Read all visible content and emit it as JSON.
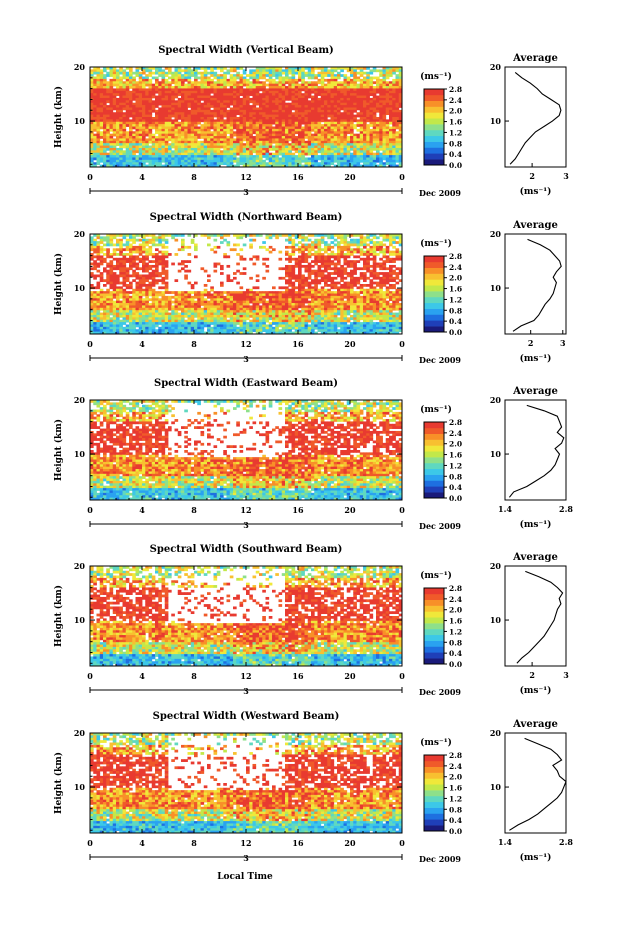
{
  "figure": {
    "xlabel": "Local Time",
    "date_label": "Dec 2009",
    "day_label": "3",
    "ylabel": "Height (km)",
    "colorbar_unit": "(ms⁻¹)",
    "colorbar_ticks": [
      "0.0",
      "0.4",
      "0.8",
      "1.2",
      "1.6",
      "2.0",
      "2.4",
      "2.8"
    ],
    "x_ticks": [
      "0",
      "4",
      "8",
      "12",
      "16",
      "20",
      "0"
    ],
    "y_ticks": [
      "10",
      "20"
    ],
    "avg_title": "Average",
    "avg_unit": "(ms⁻¹)"
  },
  "chart_data": [
    {
      "type": "heatmap",
      "title": "Spectral Width (Vertical Beam)",
      "xlabel": "Local Time",
      "ylabel": "Height (km)",
      "x_range_hours": [
        0,
        24
      ],
      "ylim_km": [
        1.5,
        20
      ],
      "colorbar_range": [
        0.0,
        2.8
      ],
      "profile": {
        "title": "Average",
        "xticks": [
          "2",
          "3"
        ],
        "xlim": [
          1.2,
          3.0
        ],
        "height_km": [
          2,
          3,
          4,
          5,
          6,
          7,
          8,
          9,
          10,
          11,
          12,
          13,
          14,
          15,
          16,
          17,
          18,
          19
        ],
        "values": [
          1.35,
          1.5,
          1.6,
          1.7,
          1.8,
          1.95,
          2.1,
          2.35,
          2.6,
          2.8,
          2.85,
          2.8,
          2.55,
          2.3,
          2.15,
          1.95,
          1.7,
          1.5
        ]
      }
    },
    {
      "type": "heatmap",
      "title": "Spectral Width (Northward Beam)",
      "xlabel": "Local Time",
      "ylabel": "Height (km)",
      "x_range_hours": [
        0,
        24
      ],
      "ylim_km": [
        1.5,
        20
      ],
      "colorbar_range": [
        0.0,
        2.8
      ],
      "profile": {
        "title": "Average",
        "xticks": [
          "2",
          "3"
        ],
        "xlim": [
          1.2,
          3.1
        ],
        "height_km": [
          2,
          3,
          4,
          5,
          6,
          7,
          8,
          9,
          10,
          11,
          12,
          13,
          14,
          15,
          16,
          17,
          18,
          19
        ],
        "values": [
          1.45,
          1.7,
          2.1,
          2.25,
          2.35,
          2.45,
          2.6,
          2.7,
          2.75,
          2.8,
          2.7,
          2.8,
          2.95,
          2.9,
          2.75,
          2.6,
          2.3,
          1.9
        ]
      }
    },
    {
      "type": "heatmap",
      "title": "Spectral Width (Eastward Beam)",
      "xlabel": "Local Time",
      "ylabel": "Height (km)",
      "x_range_hours": [
        0,
        24
      ],
      "ylim_km": [
        1.5,
        20
      ],
      "colorbar_range": [
        0.0,
        2.8
      ],
      "profile": {
        "title": "Average",
        "xticks": [
          "1.4",
          "2.8"
        ],
        "xlim": [
          1.4,
          2.8
        ],
        "height_km": [
          2,
          3,
          4,
          5,
          6,
          7,
          8,
          9,
          10,
          11,
          12,
          13,
          14,
          15,
          16,
          17,
          18,
          19
        ],
        "values": [
          1.5,
          1.6,
          1.9,
          2.1,
          2.3,
          2.45,
          2.55,
          2.6,
          2.65,
          2.55,
          2.7,
          2.75,
          2.6,
          2.7,
          2.65,
          2.6,
          2.3,
          1.9
        ]
      }
    },
    {
      "type": "heatmap",
      "title": "Spectral Width (Southward Beam)",
      "xlabel": "Local Time",
      "ylabel": "Height (km)",
      "x_range_hours": [
        0,
        24
      ],
      "ylim_km": [
        1.5,
        20
      ],
      "colorbar_range": [
        0.0,
        2.8
      ],
      "profile": {
        "title": "Average",
        "xticks": [
          "2",
          "3"
        ],
        "xlim": [
          1.2,
          3.0
        ],
        "height_km": [
          2,
          3,
          4,
          5,
          6,
          7,
          8,
          9,
          10,
          11,
          12,
          13,
          14,
          15,
          16,
          17,
          18,
          19
        ],
        "values": [
          1.55,
          1.7,
          1.9,
          2.05,
          2.2,
          2.35,
          2.45,
          2.55,
          2.65,
          2.7,
          2.75,
          2.85,
          2.8,
          2.9,
          2.75,
          2.55,
          2.2,
          1.8
        ]
      }
    },
    {
      "type": "heatmap",
      "title": "Spectral Width (Westward Beam)",
      "xlabel": "Local Time",
      "ylabel": "Height (km)",
      "x_range_hours": [
        0,
        24
      ],
      "ylim_km": [
        1.5,
        20
      ],
      "colorbar_range": [
        0.0,
        2.8
      ],
      "profile": {
        "title": "Average",
        "xticks": [
          "1.4",
          "2.8"
        ],
        "xlim": [
          1.4,
          2.8
        ],
        "height_km": [
          2,
          3,
          4,
          5,
          6,
          7,
          8,
          9,
          10,
          11,
          12,
          13,
          14,
          15,
          16,
          17,
          18,
          19
        ],
        "values": [
          1.5,
          1.7,
          1.95,
          2.15,
          2.3,
          2.45,
          2.6,
          2.7,
          2.75,
          2.8,
          2.65,
          2.6,
          2.5,
          2.7,
          2.6,
          2.45,
          2.15,
          1.85
        ]
      }
    }
  ],
  "colors": {
    "palette": [
      "#1a1a7a",
      "#1f3fb8",
      "#1e6fe0",
      "#2aa2f0",
      "#3cc8e8",
      "#5fd8c0",
      "#8ee08a",
      "#c2e84a",
      "#f0e83a",
      "#f8c030",
      "#f89028",
      "#f05a2a",
      "#e83a30"
    ]
  }
}
